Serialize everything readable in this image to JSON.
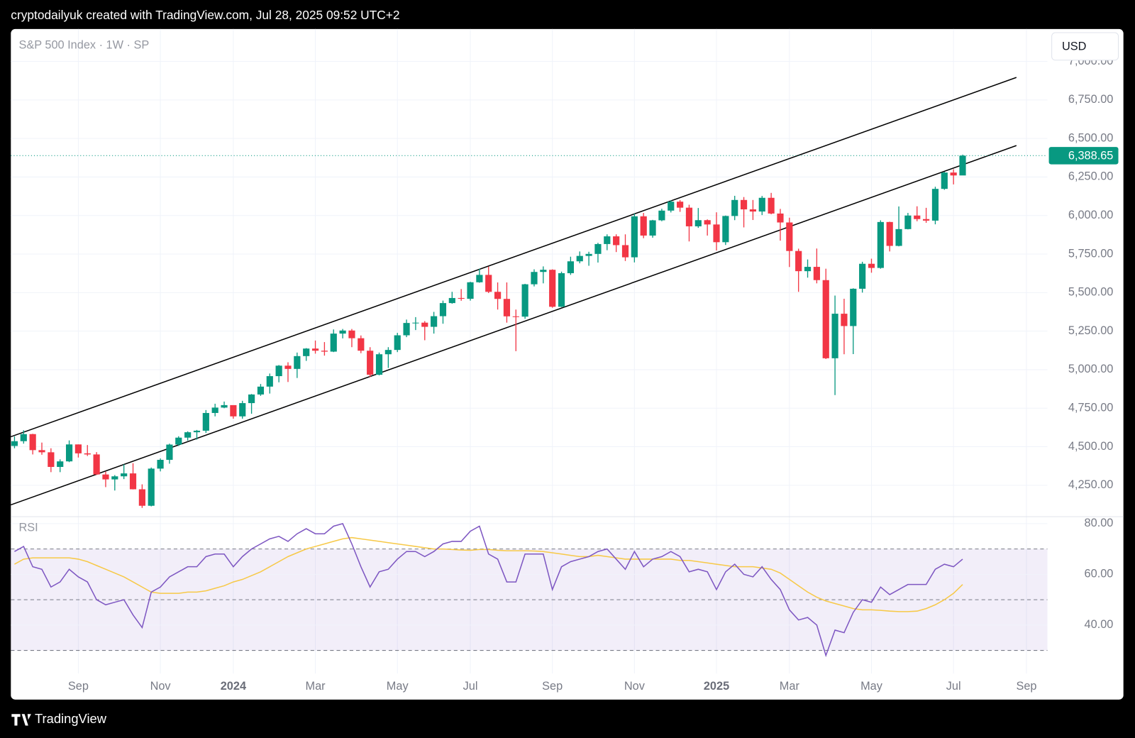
{
  "header": {
    "text": "cryptodailyuk created with TradingView.com, Jul 28, 2025 09:52 UTC+2"
  },
  "footer": {
    "brand": "TradingView"
  },
  "chart_data": {
    "type": "candlestick",
    "legend": "S&P 500 Index · 1W · SP",
    "currency": "USD",
    "up_color": "#089981",
    "down_color": "#f23645",
    "grid": true,
    "open": [
      4505,
      4536,
      4582,
      4478,
      4464,
      4369,
      4405,
      4515,
      4457,
      4450,
      4320,
      4288,
      4308,
      4327,
      4224,
      4117,
      4358,
      4415,
      4514,
      4559,
      4594,
      4604,
      4719,
      4754,
      4770,
      4697,
      4783,
      4839,
      4890,
      4958,
      5026,
      5005,
      5088,
      5137,
      5123,
      5117,
      5234,
      5254,
      5204,
      5123,
      4967,
      5100,
      5128,
      5223,
      5303,
      5305,
      5278,
      5347,
      5432,
      5465,
      5460,
      5567,
      5615,
      5505,
      5459,
      5346,
      5344,
      5554,
      5634,
      5648,
      5408,
      5626,
      5703,
      5738,
      5751,
      5815,
      5865,
      5808,
      5729,
      5995,
      5870,
      5969,
      6032,
      6090,
      6051,
      5930,
      5970,
      5942,
      5827,
      5997,
      6101,
      6040,
      6026,
      6115,
      6013,
      5955,
      5770,
      5639,
      5667,
      5581,
      5074,
      5363,
      5283,
      5525,
      5687,
      5660,
      5958,
      5803,
      5912,
      6000,
      5977,
      5967,
      6173,
      6279,
      6260
    ],
    "high": [
      4567,
      4607,
      4584,
      4527,
      4490,
      4418,
      4541,
      4515,
      4511,
      4465,
      4338,
      4316,
      4386,
      4393,
      4256,
      4365,
      4424,
      4520,
      4568,
      4600,
      4609,
      4738,
      4779,
      4793,
      4754,
      4798,
      4842,
      4907,
      4975,
      5030,
      5048,
      5111,
      5140,
      5189,
      5179,
      5261,
      5264,
      5264,
      5222,
      5146,
      5111,
      5146,
      5239,
      5325,
      5341,
      5315,
      5375,
      5448,
      5505,
      5523,
      5570,
      5655,
      5669,
      5566,
      5566,
      5390,
      5557,
      5651,
      5670,
      5651,
      5636,
      5733,
      5767,
      5765,
      5823,
      5878,
      5878,
      5878,
      6012,
      6017,
      5972,
      6044,
      6099,
      6100,
      6070,
      6049,
      5975,
      6021,
      6000,
      6128,
      6120,
      6101,
      6127,
      6147,
      6043,
      5986,
      5785,
      5715,
      5786,
      5655,
      5481,
      5460,
      5528,
      5700,
      5720,
      5969,
      5960,
      6059,
      6017,
      6060,
      6050,
      6187,
      6284,
      6300,
      6395
    ],
    "low": [
      4490,
      4520,
      4450,
      4448,
      4335,
      4335,
      4400,
      4430,
      4440,
      4317,
      4238,
      4216,
      4290,
      4223,
      4103,
      4113,
      4340,
      4390,
      4505,
      4540,
      4546,
      4590,
      4697,
      4750,
      4682,
      4682,
      4714,
      4830,
      4845,
      4918,
      4920,
      4946,
      5057,
      5104,
      5091,
      5114,
      5203,
      5146,
      5107,
      4953,
      4963,
      5011,
      5114,
      5211,
      5257,
      5191,
      5234,
      5298,
      5428,
      5447,
      5448,
      5564,
      5497,
      5390,
      5305,
      5120,
      5330,
      5540,
      5560,
      5402,
      5406,
      5615,
      5690,
      5674,
      5695,
      5775,
      5763,
      5705,
      5696,
      5853,
      5856,
      5963,
      6020,
      6024,
      5832,
      5920,
      5870,
      5773,
      5809,
      5970,
      5923,
      5971,
      6003,
      6008,
      5837,
      5666,
      5505,
      5597,
      5560,
      5069,
      4835,
      5100,
      5101,
      5500,
      5629,
      5655,
      5767,
      5800,
      5910,
      5963,
      5953,
      5943,
      6167,
      6202,
      6281
    ],
    "close": [
      4536,
      4582,
      4478,
      4464,
      4369,
      4405,
      4515,
      4457,
      4450,
      4320,
      4288,
      4308,
      4327,
      4224,
      4117,
      4358,
      4415,
      4514,
      4559,
      4594,
      4604,
      4719,
      4754,
      4770,
      4697,
      4783,
      4839,
      4890,
      4958,
      5026,
      5005,
      5088,
      5137,
      5123,
      5117,
      5234,
      5254,
      5204,
      5123,
      4967,
      5100,
      5128,
      5223,
      5303,
      5305,
      5278,
      5347,
      5432,
      5465,
      5460,
      5567,
      5615,
      5505,
      5459,
      5346,
      5344,
      5554,
      5634,
      5648,
      5408,
      5626,
      5703,
      5738,
      5751,
      5815,
      5865,
      5808,
      5729,
      5995,
      5870,
      5969,
      6032,
      6090,
      6051,
      5930,
      5970,
      5942,
      5827,
      5997,
      6101,
      6040,
      6026,
      6115,
      6013,
      5955,
      5770,
      5639,
      5667,
      5581,
      5074,
      5363,
      5283,
      5525,
      5687,
      5660,
      5958,
      5803,
      5912,
      6000,
      5977,
      5967,
      6173,
      6279,
      6260,
      6388.65
    ],
    "last_price": {
      "value": 6388.65,
      "label": "6,388.65"
    },
    "xlim": [
      -0.4,
      113.3
    ],
    "xticks": [
      {
        "value": 7,
        "label": "Sep"
      },
      {
        "value": 16,
        "label": "Nov"
      },
      {
        "value": 24,
        "label": "2024"
      },
      {
        "value": 33,
        "label": "Mar"
      },
      {
        "value": 42,
        "label": "May"
      },
      {
        "value": 50,
        "label": "Jul"
      },
      {
        "value": 59,
        "label": "Sep"
      },
      {
        "value": 68,
        "label": "Nov"
      },
      {
        "value": 77,
        "label": "2025"
      },
      {
        "value": 85,
        "label": "Mar"
      },
      {
        "value": 94,
        "label": "May"
      },
      {
        "value": 103,
        "label": "Jul"
      },
      {
        "value": 111,
        "label": "Sep"
      }
    ],
    "ylim": [
      4053,
      7210
    ],
    "yticks": [
      {
        "value": 4250,
        "label": "4,250.00"
      },
      {
        "value": 4500,
        "label": "4,500.00"
      },
      {
        "value": 4750,
        "label": "4,750.00"
      },
      {
        "value": 5000,
        "label": "5,000.00"
      },
      {
        "value": 5250,
        "label": "5,250.00"
      },
      {
        "value": 5500,
        "label": "5,500.00"
      },
      {
        "value": 5750,
        "label": "5,750.00"
      },
      {
        "value": 6000,
        "label": "6,000.00"
      },
      {
        "value": 6250,
        "label": "6,250.00"
      },
      {
        "value": 6500,
        "label": "6,500.00"
      },
      {
        "value": 6750,
        "label": "6,750.00"
      },
      {
        "value": 7000,
        "label": "7,000.00"
      }
    ],
    "trendlines": [
      {
        "x": [
          -0.4,
          109.9
        ],
        "y": [
          4565,
          6896
        ],
        "color": "#000000"
      },
      {
        "x": [
          -0.4,
          109.9
        ],
        "y": [
          4123,
          6454
        ],
        "color": "#000000"
      }
    ],
    "rsi": {
      "type": "line",
      "title": "RSI",
      "ylim": [
        20.9,
        82.3
      ],
      "yticks": [
        {
          "value": 40,
          "label": "40.00"
        },
        {
          "value": 60,
          "label": "60.00"
        },
        {
          "value": 80,
          "label": "80.00"
        }
      ],
      "bands": [
        70,
        50,
        30
      ],
      "band_color": "#7e57c2",
      "series": [
        {
          "color": "#7e57c2",
          "values": [
            69,
            71,
            63,
            62,
            55,
            57,
            62,
            59,
            57,
            50,
            48,
            49,
            50,
            44,
            39,
            53,
            55,
            59,
            61,
            63,
            63,
            67,
            68,
            68,
            63,
            67,
            70,
            72,
            74,
            75,
            73,
            76,
            78,
            76,
            76,
            79,
            80,
            72,
            63,
            55,
            61,
            62,
            66,
            69,
            69,
            67,
            69,
            72,
            73,
            73,
            77,
            79,
            68,
            66,
            57,
            57,
            68,
            68,
            68,
            54,
            63,
            65,
            66,
            67,
            69,
            70,
            66,
            62,
            69,
            63,
            66,
            67,
            69,
            67,
            61,
            62,
            61,
            54,
            61,
            64,
            60,
            59,
            63,
            58,
            54,
            46,
            42,
            43,
            40,
            28,
            38,
            37,
            45,
            50,
            49,
            55,
            52,
            54,
            56,
            56,
            56,
            62,
            64,
            63,
            66
          ]
        },
        {
          "color": "#f7c948",
          "values": [
            64,
            66,
            66.5,
            66.5,
            66.5,
            66.5,
            66.5,
            66,
            65,
            63.5,
            62,
            60.5,
            59,
            57,
            55,
            53,
            52.5,
            52.5,
            52.5,
            53,
            53,
            53.5,
            54.5,
            55.5,
            57,
            58,
            59.5,
            61,
            63,
            65,
            67,
            68.5,
            70,
            71,
            72,
            73,
            74,
            74.5,
            74,
            73.5,
            73,
            72.5,
            72,
            71.5,
            71,
            70.5,
            70,
            70,
            69.8,
            69.6,
            69.5,
            69.8,
            69.8,
            69.5,
            69.3,
            69.3,
            69.3,
            69.2,
            69,
            68.5,
            68,
            67.5,
            67,
            67,
            67.5,
            67,
            66.5,
            66,
            66,
            66,
            66,
            66,
            66,
            65.5,
            65.5,
            65,
            64.5,
            64,
            63.5,
            63,
            63,
            63,
            62.5,
            62,
            60.5,
            58,
            55.5,
            53,
            51,
            49.5,
            48.5,
            47.5,
            46.5,
            46,
            46,
            45.8,
            45.5,
            45.3,
            45.3,
            45.5,
            46.5,
            48,
            50,
            52.5,
            56
          ]
        }
      ]
    }
  }
}
